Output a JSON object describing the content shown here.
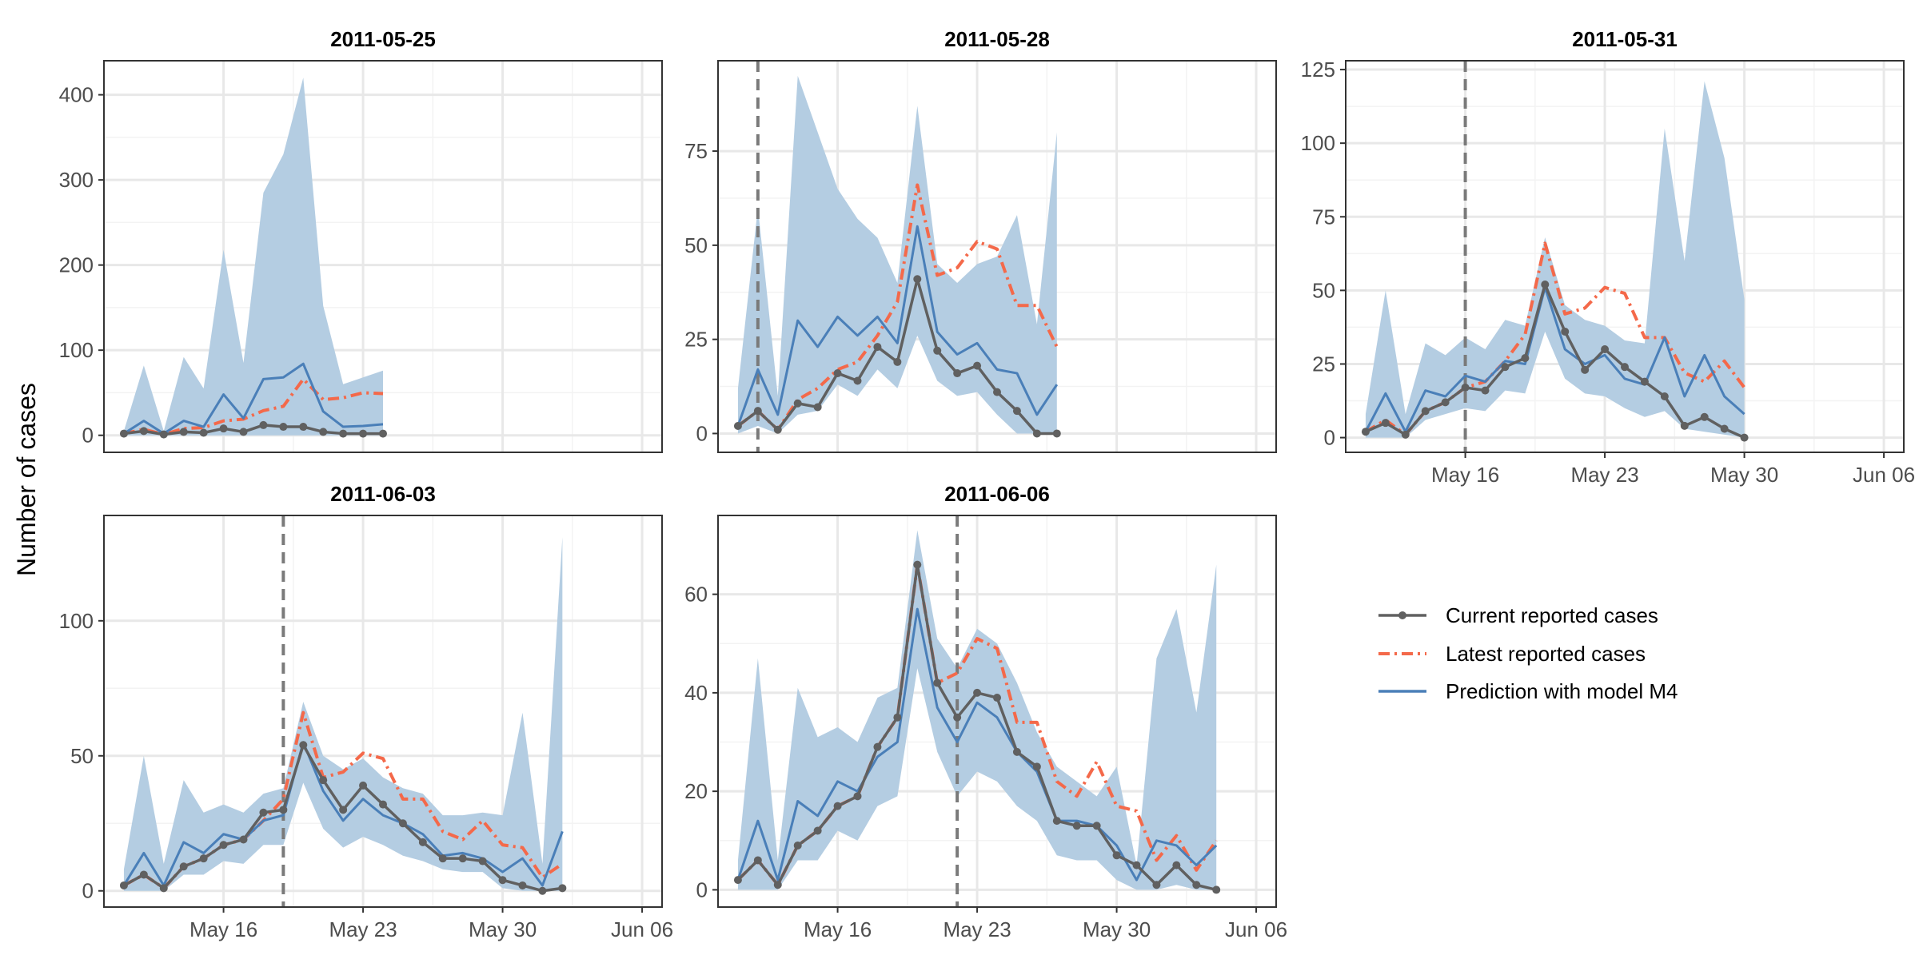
{
  "chart_data": {
    "type": "line",
    "ylabel": "Number of cases",
    "xlim_day_index": [
      -1,
      27
    ],
    "x_ticks": [
      "May 16",
      "May 23",
      "May 30",
      "Jun 06"
    ],
    "x_tick_day_index": [
      5,
      12,
      19,
      26
    ],
    "x_start_date": "2011-05-11",
    "legend": {
      "placement": "right",
      "entries": [
        {
          "key": "current",
          "label": "Current reported cases"
        },
        {
          "key": "latest",
          "label": "Latest reported cases"
        },
        {
          "key": "prediction",
          "label": "Prediction with model M4"
        }
      ]
    },
    "colors": {
      "current": "#606060",
      "latest": "#f4694a",
      "prediction": "#4a7fb8",
      "band": "#b4cde2",
      "vline": "#7a7a7a",
      "grid": "#e8e8e8",
      "border": "#333333"
    },
    "panels": [
      {
        "title": "2011-05-25",
        "ylim": [
          -20,
          440
        ],
        "yticks": [
          0,
          100,
          200,
          300,
          400
        ],
        "vline_day": null,
        "band_upper": [
          5,
          82,
          5,
          92,
          55,
          218,
          85,
          285,
          330,
          420,
          152,
          60,
          68,
          76
        ],
        "band_lower": [
          0,
          0,
          0,
          0,
          0,
          0,
          0,
          0,
          0,
          0,
          0,
          0,
          0,
          0
        ],
        "prediction": [
          2,
          17,
          2,
          17,
          10,
          48,
          20,
          66,
          68,
          84,
          28,
          10,
          11,
          13
        ],
        "latest": [
          2,
          7,
          1,
          8,
          9,
          17,
          19,
          29,
          34,
          66,
          42,
          44,
          50,
          49
        ],
        "current": [
          2,
          5,
          1,
          4,
          3,
          8,
          4,
          12,
          10,
          10,
          4,
          2,
          2,
          2
        ]
      },
      {
        "title": "2011-05-28",
        "ylim": [
          -5,
          99
        ],
        "yticks": [
          0,
          25,
          50,
          75
        ],
        "vline_day": 1,
        "band_upper": [
          12,
          60,
          10,
          95,
          80,
          65,
          57,
          52,
          40,
          87,
          45,
          40,
          45,
          47,
          58,
          29,
          80
        ],
        "band_lower": [
          0,
          2,
          0,
          5,
          6,
          13,
          10,
          17,
          12,
          26,
          14,
          10,
          11,
          5,
          0,
          0,
          0
        ],
        "prediction": [
          2,
          17,
          5,
          30,
          23,
          31,
          26,
          31,
          24,
          55,
          27,
          21,
          24,
          17,
          16,
          5,
          13
        ],
        "latest": [
          2,
          6,
          1,
          9,
          12,
          17,
          19,
          26,
          35,
          66,
          42,
          44,
          51,
          49,
          34,
          34,
          23
        ],
        "current": [
          2,
          6,
          1,
          8,
          7,
          16,
          14,
          23,
          19,
          41,
          22,
          16,
          18,
          11,
          6,
          0,
          0
        ]
      },
      {
        "title": "2011-05-31",
        "ylim": [
          -5,
          128
        ],
        "yticks": [
          0,
          25,
          50,
          75,
          100,
          125
        ],
        "vline_day": 5,
        "band_upper": [
          8,
          50,
          8,
          32,
          28,
          34,
          30,
          40,
          38,
          68,
          45,
          40,
          38,
          33,
          32,
          105,
          60,
          121,
          95,
          47
        ],
        "band_lower": [
          0,
          0,
          0,
          6,
          8,
          10,
          9,
          16,
          15,
          36,
          20,
          15,
          14,
          10,
          7,
          9,
          3,
          2,
          1,
          0
        ],
        "prediction": [
          2,
          15,
          2,
          16,
          14,
          21,
          19,
          26,
          25,
          51,
          30,
          25,
          28,
          20,
          18,
          34,
          14,
          28,
          14,
          8
        ],
        "latest": [
          2,
          6,
          1,
          9,
          12,
          17,
          19,
          26,
          35,
          66,
          42,
          44,
          51,
          49,
          34,
          34,
          22,
          19,
          26,
          17
        ],
        "current": [
          2,
          5,
          1,
          9,
          12,
          17,
          16,
          24,
          27,
          52,
          36,
          23,
          30,
          24,
          19,
          14,
          4,
          7,
          3,
          0
        ]
      },
      {
        "title": "2011-06-03",
        "ylim": [
          -6,
          139
        ],
        "yticks": [
          0,
          50,
          100
        ],
        "vline_day": 8,
        "band_upper": [
          8,
          50,
          10,
          41,
          29,
          32,
          29,
          36,
          38,
          70,
          50,
          45,
          49,
          42,
          38,
          36,
          28,
          28,
          29,
          28,
          66,
          10,
          131
        ],
        "band_lower": [
          0,
          0,
          0,
          6,
          6,
          11,
          10,
          17,
          17,
          40,
          23,
          16,
          20,
          17,
          13,
          11,
          8,
          7,
          7,
          1,
          0,
          0,
          0
        ],
        "prediction": [
          2,
          14,
          2,
          18,
          14,
          21,
          19,
          26,
          28,
          55,
          37,
          26,
          34,
          28,
          25,
          21,
          13,
          14,
          12,
          7,
          12,
          2,
          22
        ],
        "latest": [
          2,
          6,
          1,
          9,
          12,
          17,
          19,
          26,
          34,
          66,
          42,
          44,
          51,
          49,
          34,
          34,
          22,
          19,
          26,
          17,
          16,
          5,
          10
        ],
        "current": [
          2,
          6,
          1,
          9,
          12,
          17,
          19,
          29,
          30,
          54,
          41,
          30,
          39,
          32,
          25,
          18,
          12,
          12,
          11,
          4,
          2,
          0,
          1
        ]
      },
      {
        "title": "2011-06-06",
        "ylim": [
          -3.5,
          76
        ],
        "yticks": [
          0,
          20,
          40,
          60
        ],
        "vline_day": 11,
        "band_upper": [
          6,
          47,
          6,
          41,
          31,
          33,
          30,
          39,
          41,
          73,
          51,
          45,
          53,
          50,
          42,
          32,
          25,
          22,
          19,
          25,
          5,
          47,
          57,
          36,
          66
        ],
        "band_lower": [
          0,
          0,
          0,
          6,
          6,
          12,
          10,
          17,
          19,
          45,
          28,
          19,
          24,
          22,
          17,
          14,
          7,
          6,
          6,
          2,
          0,
          0,
          1,
          0,
          0
        ],
        "prediction": [
          2,
          14,
          2,
          18,
          15,
          22,
          20,
          27,
          30,
          57,
          37,
          30,
          38,
          35,
          28,
          24,
          14,
          14,
          13,
          9,
          2,
          10,
          9,
          5,
          9
        ],
        "latest": [
          2,
          6,
          1,
          9,
          12,
          17,
          19,
          29,
          35,
          66,
          42,
          44,
          51,
          49,
          34,
          34,
          22,
          19,
          26,
          17,
          16,
          6,
          11,
          4,
          10
        ],
        "current": [
          2,
          6,
          1,
          9,
          12,
          17,
          19,
          29,
          35,
          66,
          42,
          35,
          40,
          39,
          28,
          25,
          14,
          13,
          13,
          7,
          5,
          1,
          5,
          1,
          0
        ]
      }
    ]
  }
}
